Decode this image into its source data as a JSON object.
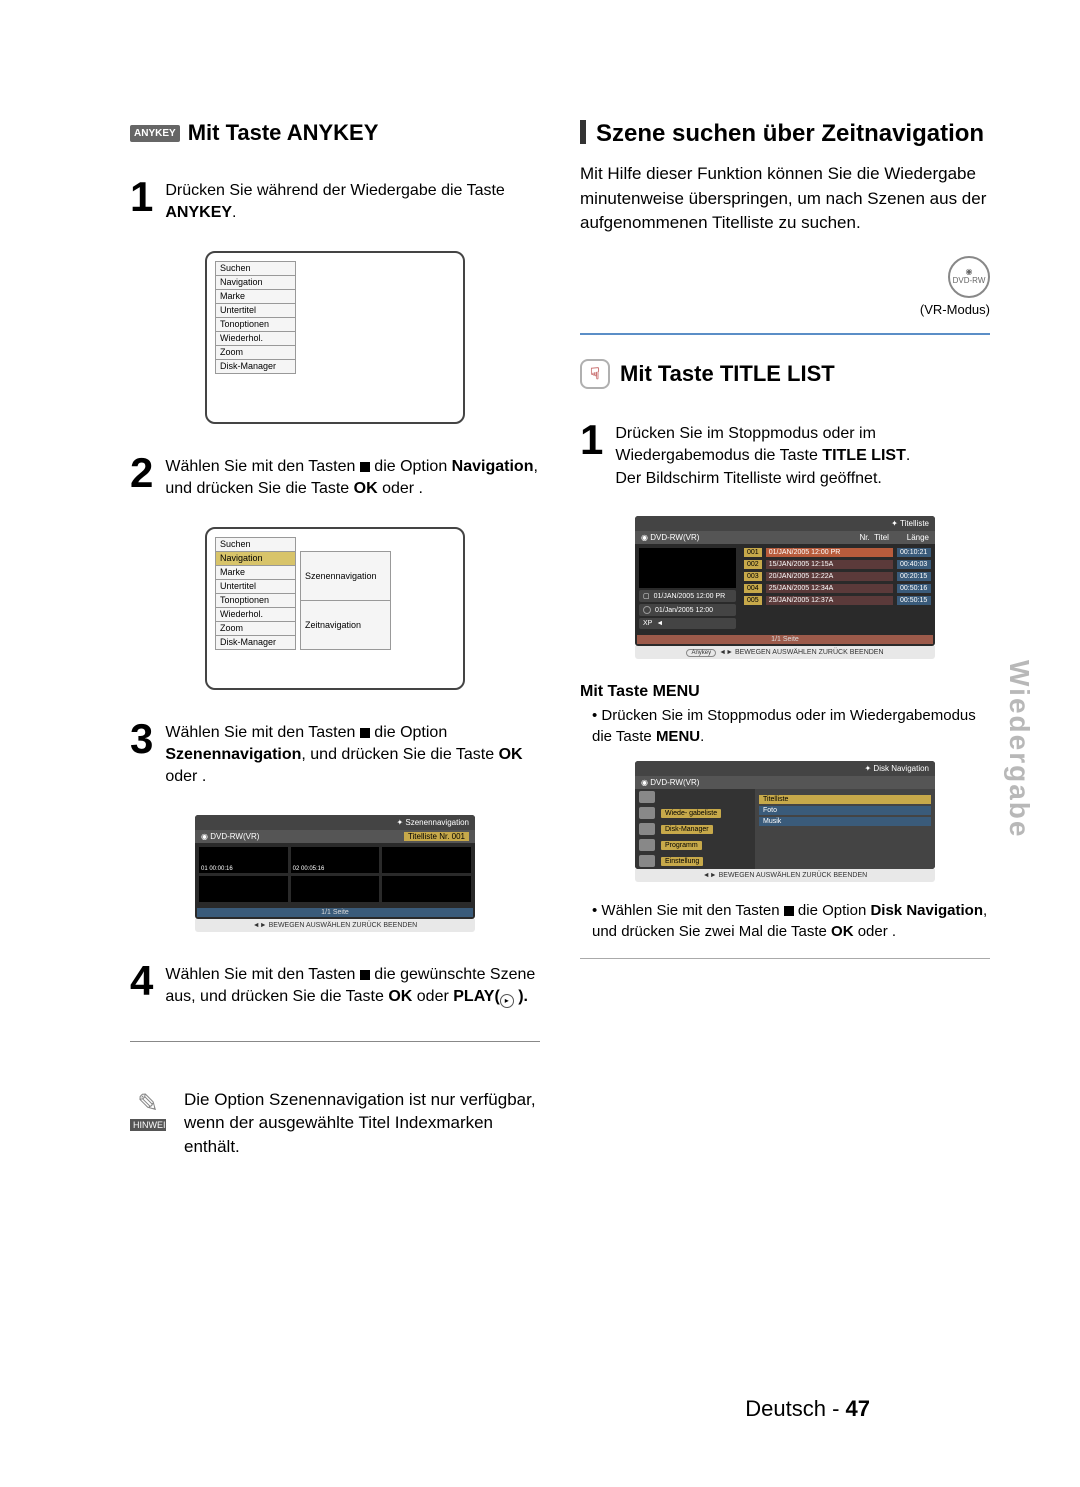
{
  "sideTab": "Wiedergabe",
  "footer": {
    "lang": "Deutsch - ",
    "page": "47"
  },
  "colors": {
    "badge": "#666666",
    "highlight": "#d8c46a",
    "blue": "#5b8ec7",
    "darkbg": "#2a2a2a"
  },
  "left": {
    "badge": "ANYKEY",
    "heading": "Mit Taste ANYKEY",
    "step1": {
      "n": "1",
      "text_a": "Drücken Sie während der Wiedergabe die Taste ",
      "text_b": "ANYKEY",
      "text_c": "."
    },
    "menuA": [
      "Suchen",
      "Navigation",
      "Marke",
      "Untertitel",
      "Tonoptionen",
      "Wiederhol.",
      "Zoom",
      "Disk-Manager"
    ],
    "step2": {
      "n": "2",
      "t1": "Wählen Sie mit den Tasten ",
      "t2": " die Option ",
      "t3": "Navigation",
      "t4": ", und drücken Sie die Taste ",
      "t5": "OK",
      "t6": " oder  ."
    },
    "menuB_left": [
      "Suchen",
      "Navigation",
      "Marke",
      "Untertitel",
      "Tonoptionen",
      "Wiederhol.",
      "Zoom",
      "Disk-Manager"
    ],
    "menuB_hl_idx": 1,
    "menuB_right": [
      "Szenennavigation",
      "Zeitnavigation"
    ],
    "step3": {
      "n": "3",
      "t1": "Wählen Sie mit den Tasten ",
      "t2": " die Option ",
      "t3": "Szenennavigation",
      "t4": ", und drücken Sie die Taste ",
      "t5": "OK",
      "t6": " oder  ."
    },
    "scrC": {
      "title": "Szenennavigation",
      "disc": "DVD-RW(VR)",
      "tlist": "Titelliste Nr. 001",
      "cells": [
        "01  00:00:16",
        "02  00:05:16",
        "",
        "",
        "",
        ""
      ],
      "page": "1/1 Seite",
      "hints": "BEWEGEN   AUSWÄHLEN   ZURÜCK   BEENDEN"
    },
    "step4": {
      "n": "4",
      "t1": "Wählen Sie mit den Tasten ",
      "t2": " die gewünschte Szene aus, und drücken Sie die Taste ",
      "t3": "OK",
      "t4": " oder ",
      "t5": "PLAY(",
      "t6": " )."
    },
    "note": {
      "label": "HINWEIS",
      "text": "Die Option Szenennavigation ist nur verfügbar, wenn der ausgewählte Titel Indexmarken enthält."
    }
  },
  "right": {
    "h1": "Szene suchen über Zeitnavigation",
    "intro": "Mit Hilfe dieser Funktion können Sie die Wiedergabe minutenweise überspringen, um nach Szenen aus der aufgenommenen Titelliste zu suchen.",
    "disc": {
      "label": "DVD-RW",
      "cap": "(VR-Modus)"
    },
    "h2": "Mit Taste TITLE LIST",
    "step1": {
      "n": "1",
      "t1": "Drücken Sie im Stoppmodus oder im Wiedergabemodus die Taste ",
      "t2": "TITLE LIST",
      "t3": ".",
      "t4": "Der Bildschirm Titelliste wird geöffnet."
    },
    "scrA": {
      "title": "Titelliste",
      "disc": "DVD-RW(VR)",
      "cols": [
        "Nr.",
        "Titel",
        "Länge"
      ],
      "rows": [
        [
          "001",
          "01/JAN/2005 12:00 PR",
          "00:10:21"
        ],
        [
          "002",
          "15/JAN/2005 12:15A",
          "00:40:03"
        ],
        [
          "003",
          "20/JAN/2005 12:22A",
          "00:20:15"
        ],
        [
          "004",
          "25/JAN/2005 12:34A",
          "00:50:16"
        ],
        [
          "005",
          "25/JAN/2005 12:37A",
          "00:50:15"
        ]
      ],
      "info1": "01/JAN/2005 12:00 PR",
      "info2": "01/Jan/2005 12:00",
      "xp": "XP",
      "page": "1/1 Seite",
      "hints": "BEWEGEN   AUSWÄHLEN   ZURÜCK   BEENDEN",
      "anykey": "Anykey"
    },
    "sub": "Mit Taste MENU",
    "bullet1": {
      "t1": "Drücken Sie im Stoppmodus oder im Wiedergabemodus die Taste ",
      "t2": "MENU",
      "t3": "."
    },
    "scrB": {
      "title": "Disk Navigation",
      "disc": "DVD-RW(VR)",
      "leftItems": [
        {
          "ic": "",
          "lbl": ""
        },
        {
          "ic": "",
          "lbl": "Wiede- gabeliste"
        },
        {
          "ic": "",
          "lbl": "Disk-Manager"
        },
        {
          "ic": "",
          "lbl": "Programm"
        },
        {
          "ic": "",
          "lbl": "Einstellung"
        }
      ],
      "rightItems": [
        "Titelliste",
        "Foto",
        "Musik"
      ],
      "hints": "BEWEGEN   AUSWÄHLEN   ZURÜCK   BEENDEN"
    },
    "bullet2": {
      "t1": "Wählen Sie mit den Tasten ",
      "t2": " die Option ",
      "t3": "Disk Navigation",
      "t4": ", und drücken Sie zwei Mal die Taste ",
      "t5": "OK",
      "t6": " oder  ."
    }
  }
}
